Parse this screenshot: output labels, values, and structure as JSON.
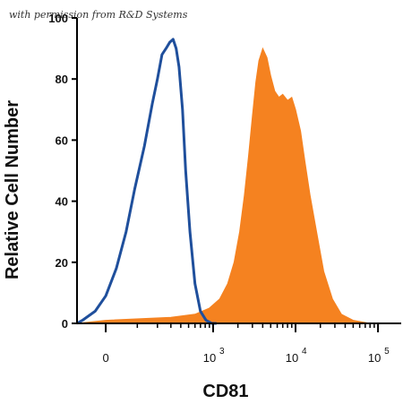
{
  "watermark": "with permission from R&D Systems",
  "colors": {
    "isotype": "#1f4f9c",
    "cd81": "#f58220"
  },
  "chart_data": {
    "type": "area",
    "xlabel": "CD81",
    "ylabel": "Relative Cell Number",
    "x_scale": "biexponential",
    "ylim": [
      0,
      100
    ],
    "yticks": [
      0,
      20,
      40,
      60,
      80,
      100
    ],
    "ytick_labels": [
      "0",
      "20",
      "40",
      "60",
      "80",
      "100"
    ],
    "xticks": [
      {
        "base": "0",
        "exp": ""
      },
      {
        "base": "10",
        "exp": "3"
      },
      {
        "base": "10",
        "exp": "4"
      },
      {
        "base": "10",
        "exp": "5"
      }
    ],
    "grid": false,
    "series": [
      {
        "style": "outline",
        "color": "#1f4f9c",
        "x": [
          -120,
          -70,
          -30,
          0,
          30,
          60,
          90,
          130,
          170,
          200,
          230,
          260,
          290,
          320,
          350,
          380,
          420,
          460,
          520,
          600,
          700,
          820,
          960,
          1100
        ],
        "y": [
          0,
          1,
          4,
          9,
          18,
          30,
          44,
          58,
          72,
          80,
          88,
          90,
          92,
          93,
          90,
          84,
          70,
          50,
          30,
          13,
          4,
          1,
          0,
          0
        ]
      },
      {
        "style": "filled",
        "color": "#f58220",
        "x": [
          -100,
          0,
          300,
          600,
          900,
          1200,
          1500,
          1800,
          2100,
          2400,
          2700,
          3000,
          3300,
          3600,
          4000,
          4500,
          5000,
          5600,
          6300,
          7000,
          8000,
          9000,
          10000,
          11500,
          13000,
          15000,
          18000,
          22000,
          28000,
          36000,
          50000,
          80000,
          200000
        ],
        "y": [
          0,
          1,
          2,
          3,
          5,
          8,
          13,
          20,
          30,
          42,
          55,
          68,
          79,
          86,
          90,
          87,
          81,
          76,
          74,
          75,
          73,
          74,
          70,
          63,
          53,
          42,
          30,
          17,
          8,
          3,
          1,
          0,
          0
        ]
      }
    ]
  }
}
